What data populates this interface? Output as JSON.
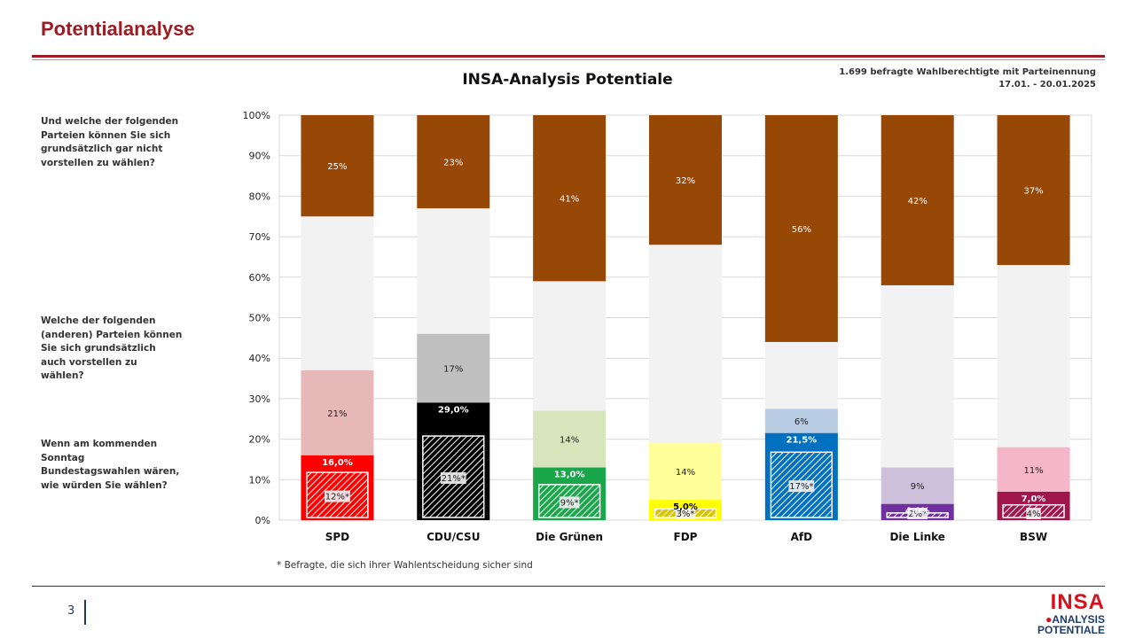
{
  "header": {
    "title": "Potentialanalyse",
    "sample_line1": "1.699 befragte Wahlberechtigte mit Parteinennung",
    "sample_line2": "17.01. - 20.01.2025"
  },
  "questions": {
    "q_not": "Und welche der folgenden Parteien können Sie sich grundsätzlich gar nicht vorstellen zu wählen?",
    "q_also": "Welche der folgenden (anderen) Parteien können Sie sich grundsätzlich auch vorstellen zu wählen?",
    "q_vote": "Wenn am kommenden Sonntag Bundestagswahlen wären, wie würden Sie wählen?"
  },
  "footer": {
    "footnote": "* Befragte, die sich ihrer Wahlentscheidung sicher sind",
    "page_number": "3",
    "logo_insa": "INSA",
    "logo_analysis": "ANALYSIS",
    "logo_potentiale": "POTENTIALE"
  },
  "chart_data": {
    "type": "bar",
    "stacked": true,
    "title": "INSA-Analysis Potentiale",
    "ylim": [
      0,
      100
    ],
    "yticks": [
      "0%",
      "10%",
      "20%",
      "30%",
      "40%",
      "50%",
      "60%",
      "70%",
      "80%",
      "90%",
      "100%"
    ],
    "categories": [
      "SPD",
      "CDU/CSU",
      "Die Grünen",
      "FDP",
      "AfD",
      "Die Linke",
      "BSW"
    ],
    "vote": [
      16.0,
      29.0,
      13.0,
      5.0,
      21.5,
      4.0,
      7.0
    ],
    "vote_labels": [
      "16,0%",
      "29,0%",
      "13,0%",
      "5,0%",
      "21,5%",
      "4,0%",
      "7,0%"
    ],
    "certain": [
      12,
      21,
      9,
      3,
      17,
      2,
      4
    ],
    "certain_labels": [
      "12%*",
      "21%*",
      "9%*",
      "3%*",
      "17%*",
      "2%*",
      "4%"
    ],
    "also": [
      21,
      17,
      14,
      14,
      6,
      9,
      11
    ],
    "also_labels": [
      "21%",
      "17%",
      "14%",
      "14%",
      "6%",
      "9%",
      "11%"
    ],
    "not": [
      25,
      23,
      41,
      32,
      56,
      42,
      37
    ],
    "not_labels": [
      "25%",
      "23%",
      "41%",
      "32%",
      "56%",
      "42%",
      "37%"
    ],
    "colors": {
      "vote": [
        "#ff0000",
        "#000000",
        "#1aa64a",
        "#ffff00",
        "#0070c0",
        "#7030a0",
        "#a0154a"
      ],
      "also": [
        "#e6b8b7",
        "#bfbfbf",
        "#d8e4bc",
        "#ffff99",
        "#b8cce4",
        "#ccc0da",
        "#f4b6c8"
      ],
      "rest": "#f2f2f2",
      "not": "#974706"
    },
    "vote_label_colors": [
      "#ffffff",
      "#ffffff",
      "#ffffff",
      "#000000",
      "#ffffff",
      "#ffffff",
      "#ffffff"
    ]
  }
}
